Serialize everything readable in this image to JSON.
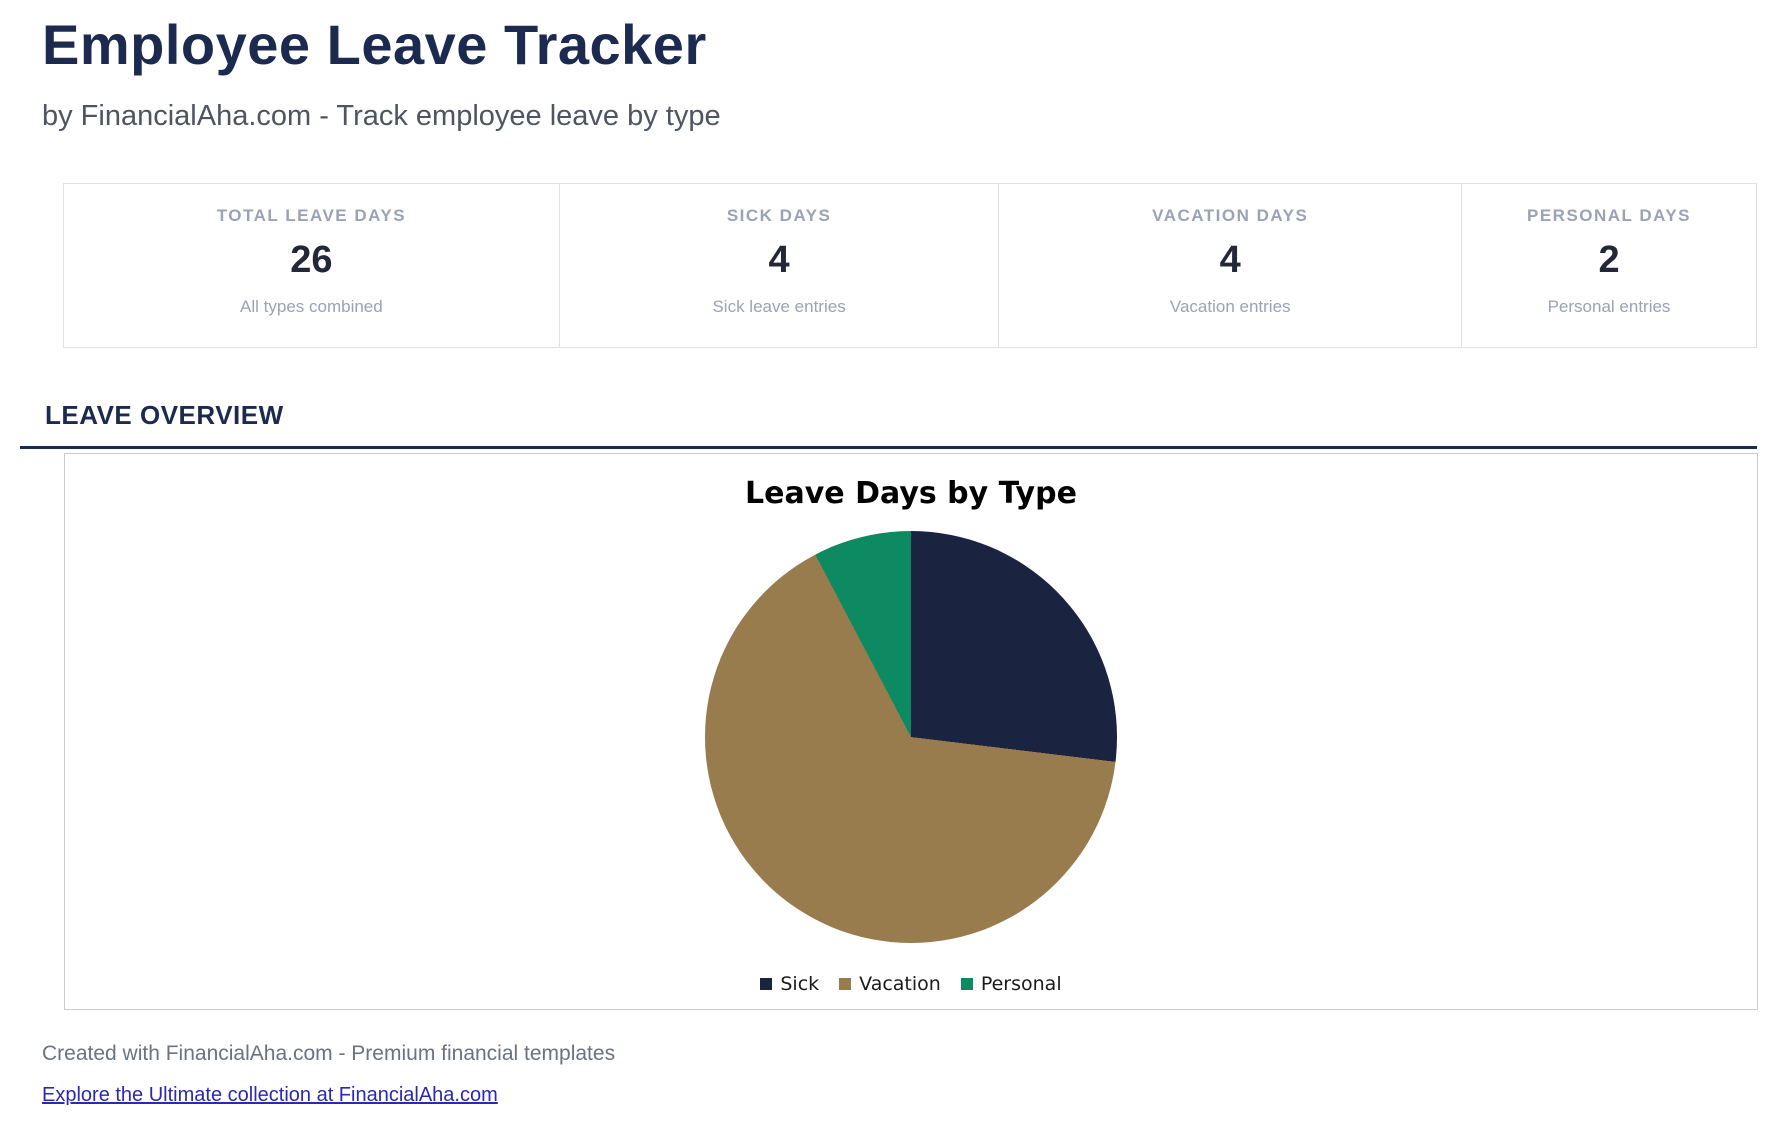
{
  "page": {
    "title": "Employee Leave Tracker",
    "subtitle": "by FinancialAha.com - Track employee leave by type"
  },
  "stats": {
    "cards": [
      {
        "label": "TOTAL LEAVE DAYS",
        "value": "26",
        "sublabel": "All types combined"
      },
      {
        "label": "SICK DAYS",
        "value": "4",
        "sublabel": "Sick leave entries"
      },
      {
        "label": "VACATION DAYS",
        "value": "4",
        "sublabel": "Vacation entries"
      },
      {
        "label": "PERSONAL DAYS",
        "value": "2",
        "sublabel": "Personal entries"
      }
    ]
  },
  "section": {
    "heading": "LEAVE OVERVIEW"
  },
  "chart_data": {
    "type": "pie",
    "title": "Leave Days by Type",
    "categories": [
      "Sick",
      "Vacation",
      "Personal"
    ],
    "values": [
      7,
      17,
      2
    ],
    "total": 26,
    "unit": "days",
    "colors": [
      "#1a2340",
      "#997c4e",
      "#0d8a62"
    ],
    "start_angle_deg": 0,
    "direction": "clockwise",
    "legend_position": "bottom"
  },
  "footer": {
    "created_text": "Created with FinancialAha.com - Premium financial templates",
    "link_text": "Explore the Ultimate collection at FinancialAha.com"
  },
  "theme": {
    "accent_navy": "#1b2a4e",
    "stat_label_gray": "#9aa2b6",
    "link_color": "#2929b2",
    "pie_sick": "#1a2340",
    "pie_vacation": "#997c4e",
    "pie_personal": "#0d8a62"
  }
}
